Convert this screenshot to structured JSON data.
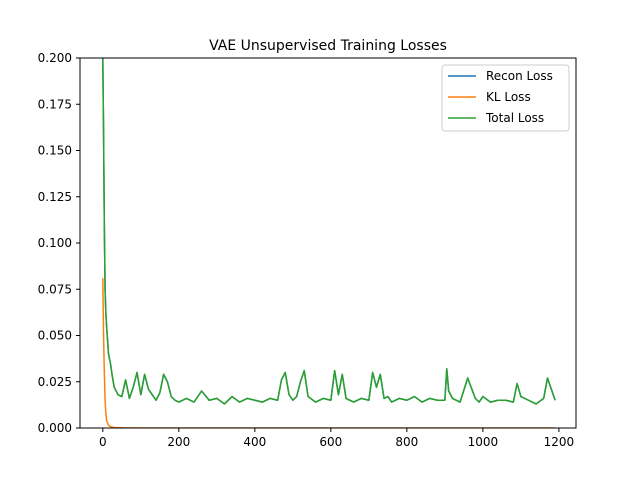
{
  "chart_data": {
    "type": "line",
    "title": "VAE Unsupervised Training Losses",
    "xlabel": "",
    "ylabel": "",
    "xlim": [
      -60,
      1245
    ],
    "ylim": [
      0,
      0.2
    ],
    "xticks": [
      0,
      200,
      400,
      600,
      800,
      1000,
      1200
    ],
    "yticks": [
      0.0,
      0.025,
      0.05,
      0.075,
      0.1,
      0.125,
      0.15,
      0.175,
      0.2
    ],
    "ytick_labels": [
      "0.000",
      "0.025",
      "0.050",
      "0.075",
      "0.100",
      "0.125",
      "0.150",
      "0.175",
      "0.200"
    ],
    "grid": false,
    "legend_position": "upper-right",
    "series": [
      {
        "name": "Recon Loss",
        "color": "#1f77b4",
        "x": [
          0,
          2,
          4,
          6,
          8,
          10,
          15,
          20,
          25,
          30,
          40,
          50,
          60,
          70,
          80,
          90,
          100,
          110,
          120,
          130,
          140,
          150,
          160,
          170,
          180,
          190,
          200,
          220,
          240,
          260,
          280,
          300,
          320,
          340,
          360,
          380,
          400,
          420,
          440,
          460,
          470,
          480,
          490,
          500,
          510,
          520,
          530,
          540,
          560,
          580,
          600,
          610,
          620,
          630,
          640,
          660,
          680,
          700,
          710,
          720,
          730,
          740,
          750,
          760,
          780,
          800,
          820,
          840,
          860,
          880,
          900,
          905,
          910,
          920,
          940,
          960,
          980,
          990,
          1000,
          1020,
          1040,
          1060,
          1080,
          1090,
          1100,
          1120,
          1140,
          1160,
          1170,
          1180,
          1190
        ],
        "values": [
          0.2,
          0.16,
          0.11,
          0.075,
          0.062,
          0.055,
          0.04,
          0.035,
          0.028,
          0.022,
          0.018,
          0.017,
          0.026,
          0.016,
          0.022,
          0.03,
          0.018,
          0.029,
          0.021,
          0.018,
          0.015,
          0.019,
          0.029,
          0.025,
          0.017,
          0.015,
          0.014,
          0.016,
          0.014,
          0.02,
          0.015,
          0.016,
          0.013,
          0.017,
          0.014,
          0.016,
          0.015,
          0.014,
          0.016,
          0.015,
          0.026,
          0.03,
          0.018,
          0.015,
          0.017,
          0.025,
          0.031,
          0.017,
          0.014,
          0.016,
          0.015,
          0.031,
          0.018,
          0.029,
          0.016,
          0.014,
          0.016,
          0.015,
          0.03,
          0.022,
          0.029,
          0.016,
          0.017,
          0.014,
          0.016,
          0.015,
          0.017,
          0.014,
          0.016,
          0.015,
          0.015,
          0.032,
          0.02,
          0.016,
          0.014,
          0.027,
          0.016,
          0.014,
          0.017,
          0.014,
          0.015,
          0.015,
          0.014,
          0.024,
          0.017,
          0.015,
          0.013,
          0.016,
          0.027,
          0.021,
          0.015
        ]
      },
      {
        "name": "KL Loss",
        "color": "#ff7f0e",
        "x": [
          0,
          2,
          4,
          6,
          8,
          10,
          15,
          20,
          30,
          50,
          100,
          200,
          400,
          600,
          800,
          1000,
          1190
        ],
        "values": [
          0.081,
          0.05,
          0.03,
          0.015,
          0.008,
          0.004,
          0.0015,
          0.0007,
          0.0003,
          0.0001,
          0.0,
          0.0,
          0.0,
          0.0,
          0.0,
          0.0,
          0.0
        ]
      },
      {
        "name": "Total Loss",
        "color": "#2ca02c",
        "x": [
          0,
          2,
          4,
          6,
          8,
          10,
          15,
          20,
          25,
          30,
          40,
          50,
          60,
          70,
          80,
          90,
          100,
          110,
          120,
          130,
          140,
          150,
          160,
          170,
          180,
          190,
          200,
          220,
          240,
          260,
          280,
          300,
          320,
          340,
          360,
          380,
          400,
          420,
          440,
          460,
          470,
          480,
          490,
          500,
          510,
          520,
          530,
          540,
          560,
          580,
          600,
          610,
          620,
          630,
          640,
          660,
          680,
          700,
          710,
          720,
          730,
          740,
          750,
          760,
          780,
          800,
          820,
          840,
          860,
          880,
          900,
          905,
          910,
          920,
          940,
          960,
          980,
          990,
          1000,
          1020,
          1040,
          1060,
          1080,
          1090,
          1100,
          1120,
          1140,
          1160,
          1170,
          1180,
          1190
        ],
        "values": [
          0.2,
          0.16,
          0.11,
          0.075,
          0.062,
          0.055,
          0.04,
          0.035,
          0.028,
          0.022,
          0.018,
          0.017,
          0.026,
          0.016,
          0.022,
          0.03,
          0.018,
          0.029,
          0.021,
          0.018,
          0.015,
          0.019,
          0.029,
          0.025,
          0.017,
          0.015,
          0.014,
          0.016,
          0.014,
          0.02,
          0.015,
          0.016,
          0.013,
          0.017,
          0.014,
          0.016,
          0.015,
          0.014,
          0.016,
          0.015,
          0.026,
          0.03,
          0.018,
          0.015,
          0.017,
          0.025,
          0.031,
          0.017,
          0.014,
          0.016,
          0.015,
          0.031,
          0.018,
          0.029,
          0.016,
          0.014,
          0.016,
          0.015,
          0.03,
          0.022,
          0.029,
          0.016,
          0.017,
          0.014,
          0.016,
          0.015,
          0.017,
          0.014,
          0.016,
          0.015,
          0.015,
          0.032,
          0.02,
          0.016,
          0.014,
          0.027,
          0.016,
          0.014,
          0.017,
          0.014,
          0.015,
          0.015,
          0.014,
          0.024,
          0.017,
          0.015,
          0.013,
          0.016,
          0.027,
          0.021,
          0.015
        ]
      }
    ]
  }
}
